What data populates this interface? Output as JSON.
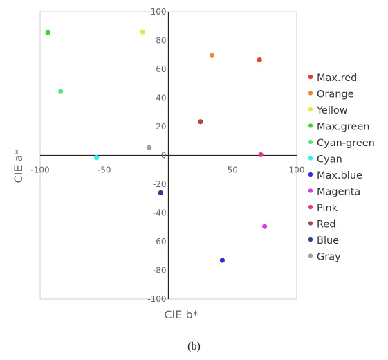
{
  "chart_data": {
    "type": "scatter",
    "xlabel": "CIE b*",
    "ylabel": "CIE a*",
    "xlim": [
      -100,
      100
    ],
    "ylim": [
      -100,
      100
    ],
    "x_ticks": [
      -100,
      -50,
      0,
      50,
      100
    ],
    "y_ticks": [
      -100,
      -80,
      -60,
      -40,
      -20,
      0,
      20,
      40,
      60,
      80,
      100
    ],
    "grid": false,
    "legend_position": "right",
    "series": [
      {
        "name": "Max.red",
        "color": "#e0442a",
        "x": 71,
        "y": 66.5
      },
      {
        "name": "Orange",
        "color": "#ee8a33",
        "x": 34,
        "y": 69.5
      },
      {
        "name": "Yellow",
        "color": "#e8e640",
        "x": -20,
        "y": 86
      },
      {
        "name": "Max.green",
        "color": "#48d040",
        "x": -94,
        "y": 85.5
      },
      {
        "name": "Cyan-green",
        "color": "#5ae67a",
        "x": -84,
        "y": 44.5
      },
      {
        "name": "Cyan",
        "color": "#36ecec",
        "x": -56,
        "y": -1.5
      },
      {
        "name": "Max.blue",
        "color": "#2f2fd8",
        "x": 42,
        "y": -73
      },
      {
        "name": "Magenta",
        "color": "#d43ee0",
        "x": 75,
        "y": -49.5
      },
      {
        "name": "Pink",
        "color": "#e0388a",
        "x": 72,
        "y": 0.5
      },
      {
        "name": "Red",
        "color": "#a34c40",
        "x": 25,
        "y": 23.5
      },
      {
        "name": "Blue",
        "color": "#2e3e8e",
        "x": -6,
        "y": -26
      },
      {
        "name": "Gray",
        "color": "#a0a0a0",
        "x": -15,
        "y": 5.5
      }
    ]
  },
  "caption": "(b)"
}
